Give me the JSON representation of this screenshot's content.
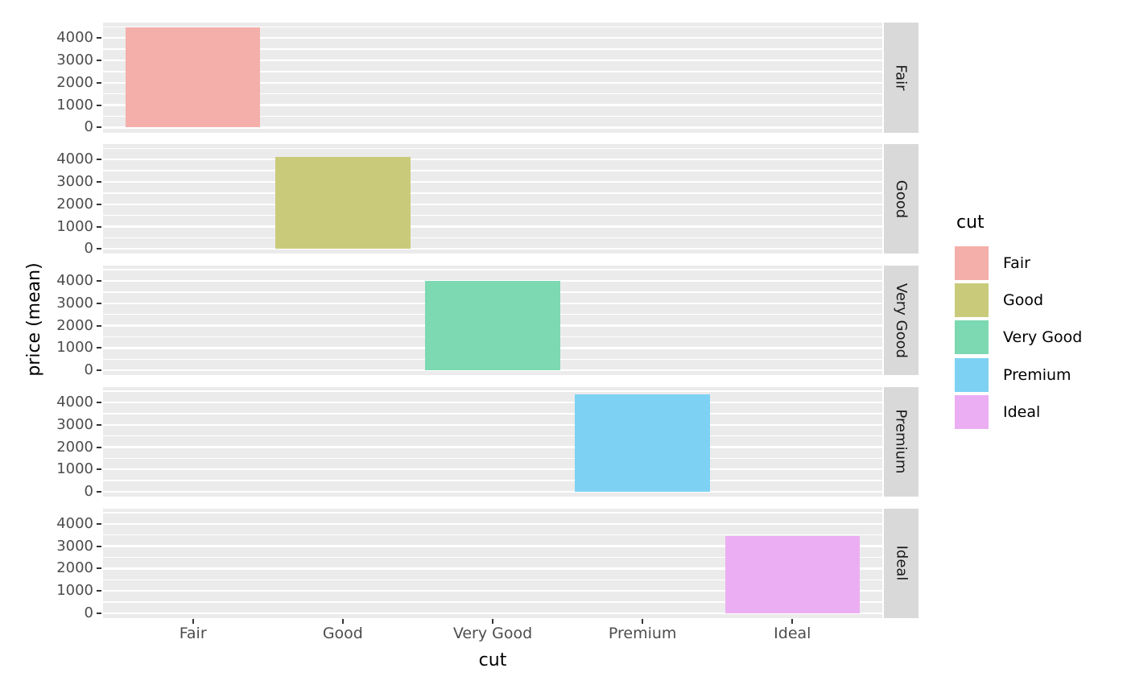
{
  "chart_data": {
    "type": "bar",
    "title": "",
    "xlabel": "cut",
    "ylabel": "price (mean)",
    "x_categories": [
      "Fair",
      "Good",
      "Very Good",
      "Premium",
      "Ideal"
    ],
    "y_tick_labels": [
      "0",
      "1000",
      "2000",
      "3000",
      "4000"
    ],
    "y_ticks": [
      0,
      1000,
      2000,
      3000,
      4000
    ],
    "y_minor_breaks": [
      500,
      1500,
      2500,
      3500,
      4500
    ],
    "ylim": [
      -224,
      4694
    ],
    "grid": true,
    "legend_position": "right",
    "facet_variable": "cut",
    "facets": [
      {
        "label": "Fair",
        "category": "Fair",
        "value": 4470,
        "color": "#F4AFAA"
      },
      {
        "label": "Good",
        "category": "Good",
        "value": 4110,
        "color": "#C9CB7B"
      },
      {
        "label": "Very Good",
        "category": "Very Good",
        "value": 3985,
        "color": "#7CD9B1"
      },
      {
        "label": "Premium",
        "category": "Premium",
        "value": 4360,
        "color": "#7DD2F3"
      },
      {
        "label": "Ideal",
        "category": "Ideal",
        "value": 3460,
        "color": "#ECAEF3"
      }
    ]
  },
  "legend": {
    "title": "cut",
    "entries": [
      {
        "label": "Fair",
        "color": "#F4AFAA"
      },
      {
        "label": "Good",
        "color": "#C9CB7B"
      },
      {
        "label": "Very Good",
        "color": "#7CD9B1"
      },
      {
        "label": "Premium",
        "color": "#7DD2F3"
      },
      {
        "label": "Ideal",
        "color": "#ECAEF3"
      }
    ]
  },
  "style": {
    "panel_background": "#EBEBEB",
    "strip_background": "#D9D9D9",
    "grid_color": "#FFFFFF",
    "tick_color": "#333333",
    "tick_label_color": "#4D4D4D",
    "title_color": "#000000"
  }
}
